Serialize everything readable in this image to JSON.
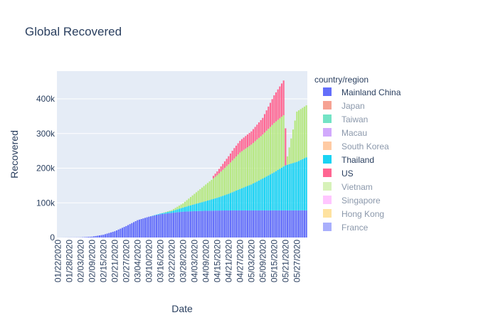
{
  "chart_data": {
    "type": "bar",
    "title": "Global Recovered",
    "xlabel": "Date",
    "ylabel": "Recovered",
    "stacked": true,
    "ylim": [
      0,
      480000
    ],
    "yticks": [
      0,
      100000,
      200000,
      300000,
      400000
    ],
    "ytick_labels": [
      "0",
      "100k",
      "200k",
      "300k",
      "400k"
    ],
    "xlim": [
      "2020-01-22",
      "2020-06-01"
    ],
    "xtick_labels": [
      "01/22/2020",
      "01/28/2020",
      "02/03/2020",
      "02/09/2020",
      "02/15/2020",
      "02/21/2020",
      "02/27/2020",
      "03/04/2020",
      "03/10/2020",
      "03/16/2020",
      "03/22/2020",
      "03/28/2020",
      "04/03/2020",
      "04/09/2020",
      "04/15/2020",
      "04/21/2020",
      "04/27/2020",
      "05/03/2020",
      "05/09/2020",
      "05/15/2020",
      "05/21/2020",
      "05/27/2020"
    ],
    "grid": true,
    "legend_placement": "right",
    "legend_title": "country/region",
    "legend_entries": [
      "Mainland China",
      "Japan",
      "Taiwan",
      "Macau",
      "South Korea",
      "Thailand",
      "US",
      "Vietnam",
      "Singapore",
      "Hong Kong",
      "France"
    ],
    "legend_active": [
      "Mainland China",
      "Thailand",
      "US"
    ],
    "x_start": "2020-01-22",
    "x_end": "2020-06-01",
    "series": [
      {
        "name": "Mainland China",
        "color": "#636efa",
        "points": [
          [
            "2020-01-22",
            0
          ],
          [
            "2020-02-03",
            500
          ],
          [
            "2020-02-09",
            2500
          ],
          [
            "2020-02-15",
            8000
          ],
          [
            "2020-02-21",
            18000
          ],
          [
            "2020-02-27",
            33000
          ],
          [
            "2020-03-04",
            50000
          ],
          [
            "2020-03-10",
            60000
          ],
          [
            "2020-03-16",
            67000
          ],
          [
            "2020-03-22",
            71000
          ],
          [
            "2020-03-28",
            74500
          ],
          [
            "2020-04-03",
            76000
          ],
          [
            "2020-04-09",
            77000
          ],
          [
            "2020-04-15",
            77700
          ],
          [
            "2020-04-21",
            78000
          ],
          [
            "2020-06-01",
            78300
          ]
        ]
      },
      {
        "name": "Thailand",
        "color": "#19d3f3",
        "points": [
          [
            "2020-01-22",
            0
          ],
          [
            "2020-03-10",
            0
          ],
          [
            "2020-03-16",
            2000
          ],
          [
            "2020-03-22",
            5000
          ],
          [
            "2020-03-28",
            12000
          ],
          [
            "2020-04-03",
            20000
          ],
          [
            "2020-04-09",
            28000
          ],
          [
            "2020-04-15",
            37000
          ],
          [
            "2020-04-21",
            48000
          ],
          [
            "2020-04-27",
            62000
          ],
          [
            "2020-05-03",
            75000
          ],
          [
            "2020-05-09",
            92000
          ],
          [
            "2020-05-15",
            110000
          ],
          [
            "2020-05-21",
            130000
          ],
          [
            "2020-05-27",
            140000
          ],
          [
            "2020-06-01",
            153000
          ]
        ]
      },
      {
        "name": "Vietnam",
        "color": "#b6e880",
        "points": [
          [
            "2020-01-22",
            0
          ],
          [
            "2020-03-16",
            0
          ],
          [
            "2020-03-22",
            3000
          ],
          [
            "2020-03-28",
            12000
          ],
          [
            "2020-04-03",
            30000
          ],
          [
            "2020-04-09",
            48000
          ],
          [
            "2020-04-15",
            65000
          ],
          [
            "2020-04-21",
            85000
          ],
          [
            "2020-04-27",
            105000
          ],
          [
            "2020-05-03",
            115000
          ],
          [
            "2020-05-09",
            127000
          ],
          [
            "2020-05-15",
            142000
          ],
          [
            "2020-05-20",
            148000
          ],
          [
            "2020-05-21",
            0
          ],
          [
            "2020-05-27",
            145000
          ],
          [
            "2020-06-01",
            150000
          ]
        ]
      },
      {
        "name": "US",
        "color": "#ff6692",
        "points": [
          [
            "2020-01-22",
            0
          ],
          [
            "2020-04-12",
            0
          ],
          [
            "2020-04-13",
            7000
          ],
          [
            "2020-04-18",
            17000
          ],
          [
            "2020-04-24",
            30000
          ],
          [
            "2020-04-28",
            35000
          ],
          [
            "2020-05-03",
            38000
          ],
          [
            "2020-05-09",
            48000
          ],
          [
            "2020-05-15",
            80000
          ],
          [
            "2020-05-20",
            100000
          ],
          [
            "2020-05-21",
            0
          ],
          [
            "2020-06-01",
            0
          ]
        ]
      }
    ],
    "partial_bar": {
      "date": "2020-05-21",
      "color": "#ff6692",
      "value": 315000
    }
  }
}
